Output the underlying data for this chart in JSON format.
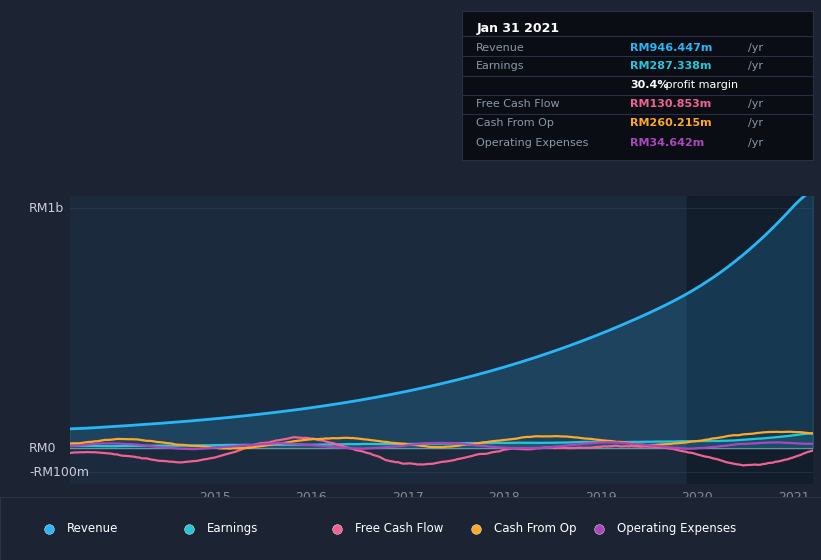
{
  "bg_color": "#1c2333",
  "plot_bg": "#1c2a3e",
  "highlight_bg": "#162030",
  "title_date": "Jan 31 2021",
  "tooltip": {
    "Revenue": {
      "value": "RM946.447m",
      "color": "#29b6f6"
    },
    "Earnings": {
      "value": "RM287.338m",
      "color": "#26c6da"
    },
    "profit_margin": "30.4%",
    "Free Cash Flow": {
      "value": "RM130.853m",
      "color": "#f06292"
    },
    "Cash From Op": {
      "value": "RM260.215m",
      "color": "#ffa726"
    },
    "Operating Expenses": {
      "value": "RM34.642m",
      "color": "#ab47bc"
    }
  },
  "ylabel_top": "RM1b",
  "ylabel_mid": "RM0",
  "ylabel_bot": "-RM100m",
  "x_ticks": [
    2015,
    2016,
    2017,
    2018,
    2019,
    2020,
    2021
  ],
  "ylim_min": -150,
  "ylim_max": 1050,
  "xmin": 2013.5,
  "xmax": 2021.2,
  "colors": {
    "Revenue": "#29b6f6",
    "Earnings": "#26c6da",
    "Free Cash Flow": "#f06292",
    "Cash From Op": "#ffa726",
    "Operating Expenses": "#ab47bc"
  },
  "legend": [
    {
      "label": "Revenue",
      "color": "#29b6f6"
    },
    {
      "label": "Earnings",
      "color": "#26c6da"
    },
    {
      "label": "Free Cash Flow",
      "color": "#f06292"
    },
    {
      "label": "Cash From Op",
      "color": "#ffa726"
    },
    {
      "label": "Operating Expenses",
      "color": "#ab47bc"
    }
  ]
}
